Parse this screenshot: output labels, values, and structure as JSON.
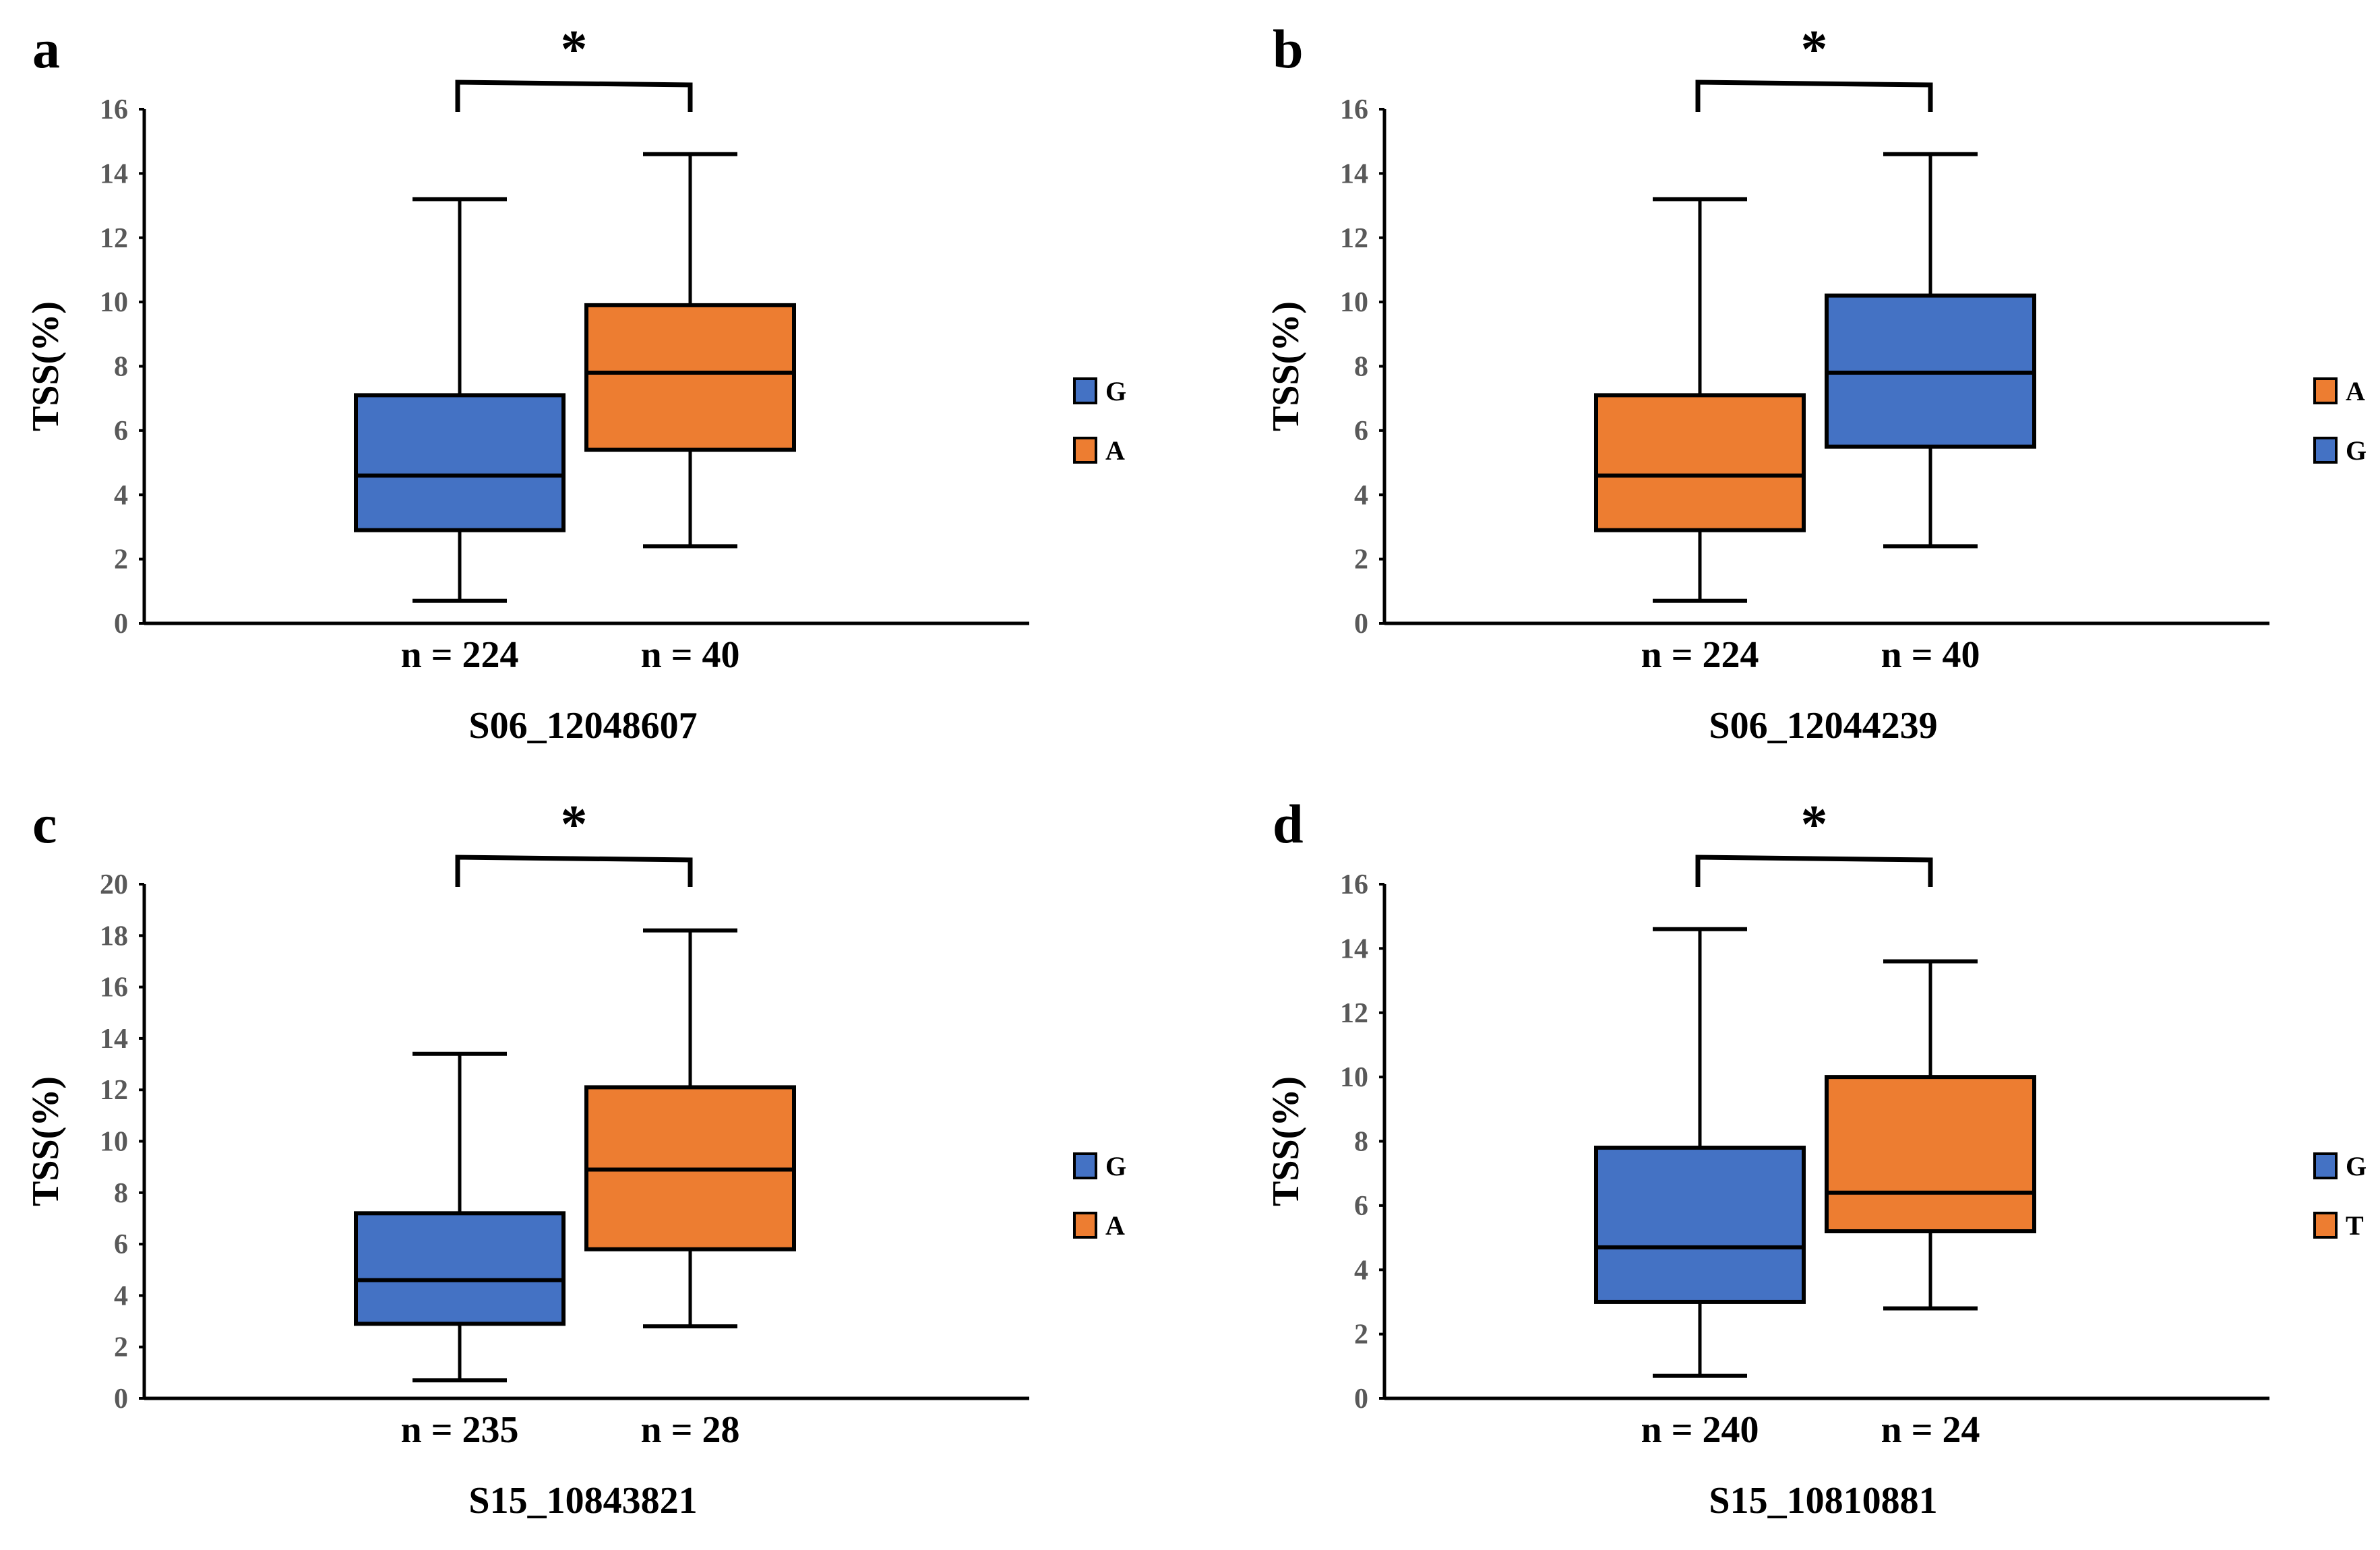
{
  "colors": {
    "blue": "#4472C4",
    "orange": "#ED7D31",
    "axis": "#000000",
    "tick_text": "#595959"
  },
  "chart_data": [
    {
      "type": "box",
      "panel_label": "a",
      "title": "S06_12048607",
      "ylabel": "TSS(%)",
      "xlabel": "S06_12048607",
      "ylim": [
        0,
        16
      ],
      "yticks": [
        0,
        2,
        4,
        6,
        8,
        10,
        12,
        14,
        16
      ],
      "grid": false,
      "legend_position": "right",
      "significance": "*",
      "series": [
        {
          "name": "G",
          "color": "blue",
          "n_label": "n = 224",
          "min": 0.7,
          "q1": 2.9,
          "median": 4.6,
          "q3": 7.1,
          "max": 13.2
        },
        {
          "name": "A",
          "color": "orange",
          "n_label": "n = 40",
          "min": 2.4,
          "q1": 5.4,
          "median": 7.8,
          "q3": 9.9,
          "max": 14.6
        }
      ]
    },
    {
      "type": "box",
      "panel_label": "b",
      "title": "S06_12044239",
      "ylabel": "TSS(%)",
      "xlabel": "S06_12044239",
      "ylim": [
        0,
        16
      ],
      "yticks": [
        0,
        2,
        4,
        6,
        8,
        10,
        12,
        14,
        16
      ],
      "grid": false,
      "legend_position": "right",
      "significance": "*",
      "series": [
        {
          "name": "A",
          "color": "orange",
          "n_label": "n = 224",
          "min": 0.7,
          "q1": 2.9,
          "median": 4.6,
          "q3": 7.1,
          "max": 13.2
        },
        {
          "name": "G",
          "color": "blue",
          "n_label": "n = 40",
          "min": 2.4,
          "q1": 5.5,
          "median": 7.8,
          "q3": 10.2,
          "max": 14.6
        }
      ]
    },
    {
      "type": "box",
      "panel_label": "c",
      "title": "S15_10843821",
      "ylabel": "TSS(%)",
      "xlabel": "S15_10843821",
      "ylim": [
        0,
        20
      ],
      "yticks": [
        0,
        2,
        4,
        6,
        8,
        10,
        12,
        14,
        16,
        18,
        20
      ],
      "grid": false,
      "legend_position": "right",
      "significance": "*",
      "series": [
        {
          "name": "G",
          "color": "blue",
          "n_label": "n = 235",
          "min": 0.7,
          "q1": 2.9,
          "median": 4.6,
          "q3": 7.2,
          "max": 13.4
        },
        {
          "name": "A",
          "color": "orange",
          "n_label": "n = 28",
          "min": 2.8,
          "q1": 5.8,
          "median": 8.9,
          "q3": 12.1,
          "max": 18.2
        }
      ]
    },
    {
      "type": "box",
      "panel_label": "d",
      "title": "S15_10810881",
      "ylabel": "TSS(%)",
      "xlabel": "S15_10810881",
      "ylim": [
        0,
        16
      ],
      "yticks": [
        0,
        2,
        4,
        6,
        8,
        10,
        12,
        14,
        16
      ],
      "grid": false,
      "legend_position": "right",
      "significance": "*",
      "series": [
        {
          "name": "G",
          "color": "blue",
          "n_label": "n = 240",
          "min": 0.7,
          "q1": 3.0,
          "median": 4.7,
          "q3": 7.8,
          "max": 14.6
        },
        {
          "name": "T",
          "color": "orange",
          "n_label": "n = 24",
          "min": 2.8,
          "q1": 5.2,
          "median": 6.4,
          "q3": 10.0,
          "max": 13.6
        }
      ]
    }
  ]
}
